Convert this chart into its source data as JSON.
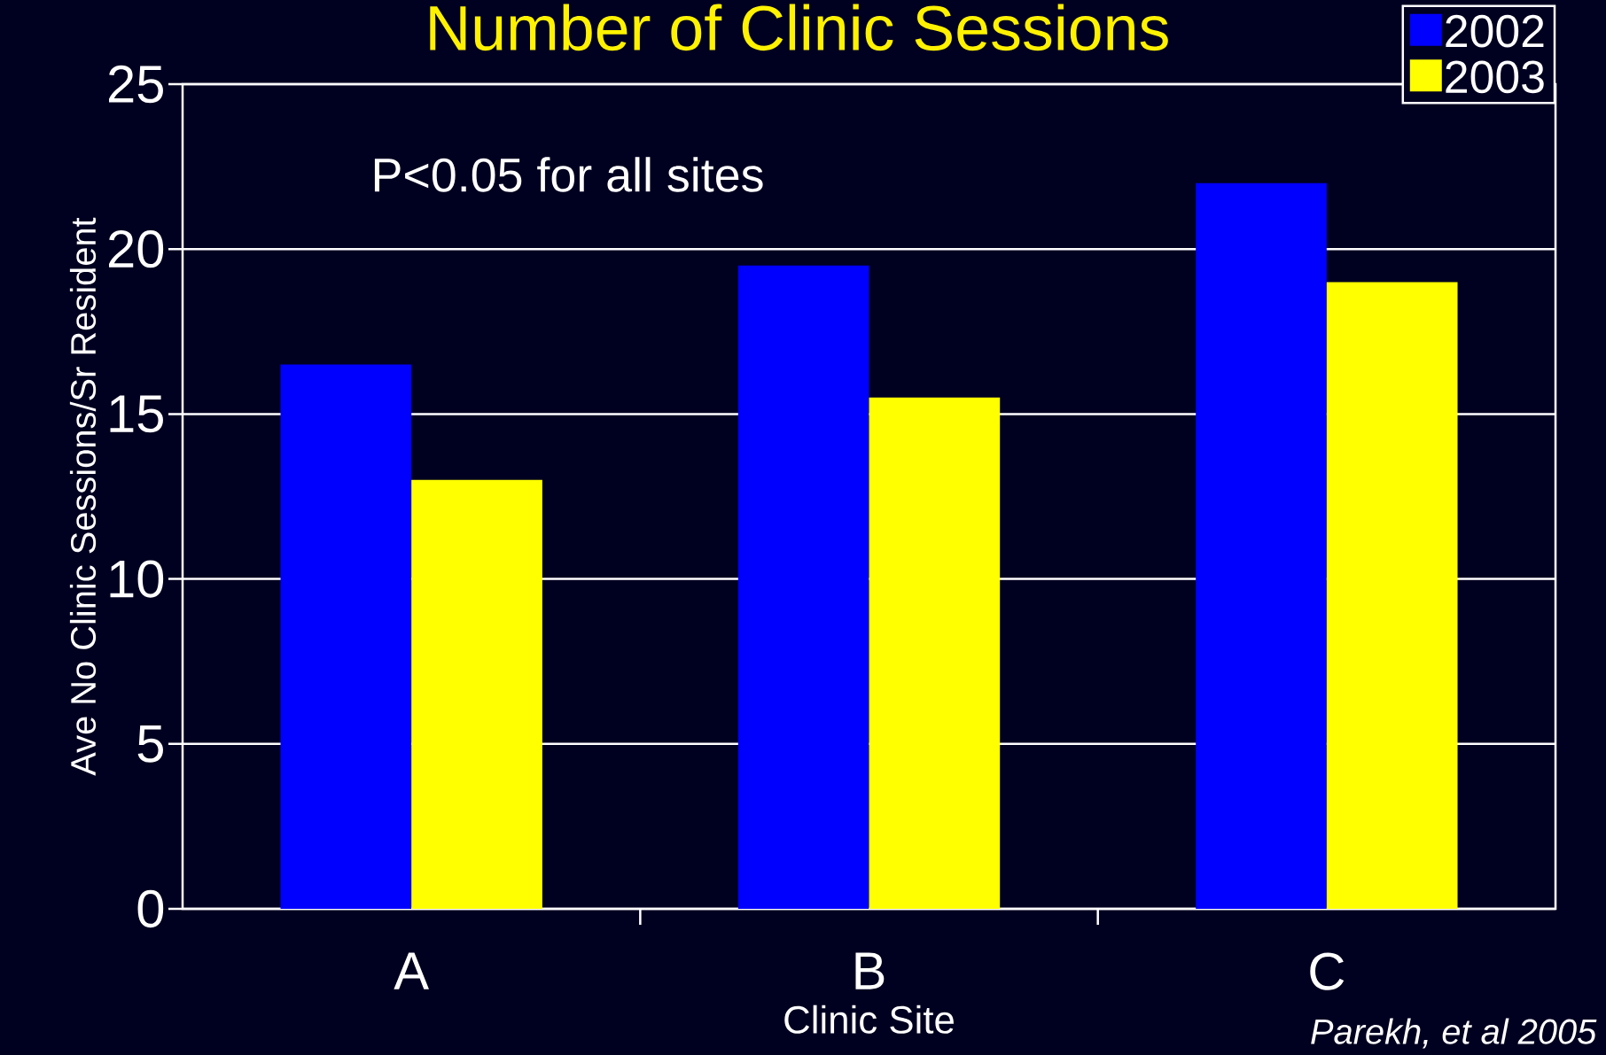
{
  "chart_data": {
    "type": "bar",
    "title": "Number of Clinic Sessions",
    "xlabel": "Clinic Site",
    "ylabel": "Ave No Clinic Sessions/Sr Resident",
    "annotations": [
      "P<0.05 for all sites",
      "*Parekh, et al 2005*"
    ],
    "categories": [
      "A",
      "B",
      "C"
    ],
    "series": [
      {
        "name": "2002",
        "color": "#0000ff",
        "values": [
          16.5,
          19.5,
          22
        ]
      },
      {
        "name": "2003",
        "color": "#ffff00",
        "values": [
          13,
          15.5,
          19
        ]
      }
    ],
    "ylim": [
      0,
      25
    ],
    "yticks": [
      0,
      5,
      10,
      15,
      20,
      25
    ],
    "grid": "y",
    "legend": "top right"
  }
}
